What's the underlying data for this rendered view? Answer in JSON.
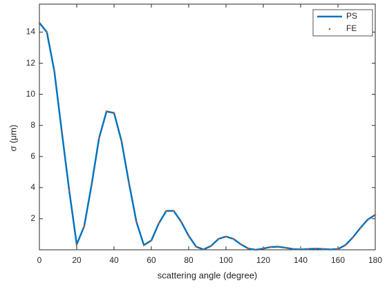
{
  "chart_data": {
    "type": "line",
    "xlabel": "scattering angle (degree)",
    "ylabel": "σ  (μm)",
    "x": [
      0,
      4,
      8,
      12,
      16,
      20,
      24,
      28,
      32,
      36,
      40,
      44,
      48,
      52,
      56,
      60,
      64,
      68,
      72,
      76,
      80,
      84,
      88,
      92,
      96,
      100,
      104,
      108,
      112,
      116,
      120,
      124,
      128,
      132,
      136,
      140,
      144,
      148,
      152,
      156,
      160,
      164,
      168,
      172,
      176,
      180
    ],
    "series": [
      {
        "name": "PS",
        "color": "#0072bd",
        "style": "line",
        "values": [
          14.6,
          14.0,
          11.5,
          7.6,
          3.8,
          0.35,
          1.5,
          4.2,
          7.2,
          8.9,
          8.8,
          7.0,
          4.3,
          1.8,
          0.3,
          0.6,
          1.7,
          2.5,
          2.5,
          1.8,
          0.9,
          0.2,
          0.02,
          0.25,
          0.7,
          0.85,
          0.7,
          0.35,
          0.08,
          0.0,
          0.08,
          0.18,
          0.2,
          0.13,
          0.05,
          0.02,
          0.05,
          0.07,
          0.05,
          0.02,
          0.05,
          0.3,
          0.8,
          1.4,
          1.95,
          2.25
        ]
      },
      {
        "name": "FE",
        "color": "#d95319",
        "style": "dots",
        "values": [
          14.6,
          14.0,
          11.5,
          7.6,
          3.8,
          0.35,
          1.5,
          4.2,
          7.2,
          8.9,
          8.8,
          7.0,
          4.3,
          1.8,
          0.3,
          0.6,
          1.7,
          2.5,
          2.5,
          1.8,
          0.9,
          0.2,
          0.02,
          0.25,
          0.7,
          0.85,
          0.7,
          0.35,
          0.08,
          0.0,
          0.08,
          0.18,
          0.2,
          0.13,
          0.05,
          0.02,
          0.05,
          0.07,
          0.05,
          0.02,
          0.05,
          0.3,
          0.8,
          1.4,
          1.95,
          2.25
        ]
      }
    ],
    "xlim": [
      0,
      180
    ],
    "xticks": [
      0,
      20,
      40,
      60,
      80,
      100,
      120,
      140,
      160,
      180
    ],
    "ylim": [
      0,
      15.8
    ],
    "yticks": [
      2,
      4,
      6,
      8,
      10,
      12,
      14
    ],
    "legend": "top-right"
  }
}
